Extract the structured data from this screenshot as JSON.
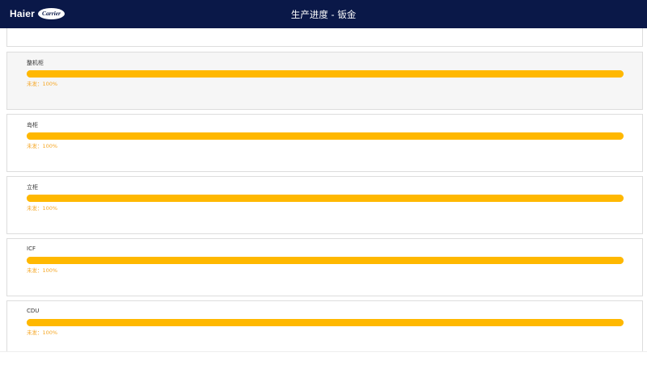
{
  "header": {
    "brand": "Haier",
    "partner_logo": "Carrier",
    "title": "生产进度 - 钣金"
  },
  "colors": {
    "header_bg": "#0a1848",
    "progress": "#ffb800",
    "status_text": "#f5a623"
  },
  "items": [
    {
      "name": "整机柜",
      "status": "未发：100%",
      "progress_percent": 100,
      "selected": true
    },
    {
      "name": "岛柜",
      "status": "未发：100%",
      "progress_percent": 100
    },
    {
      "name": "立柜",
      "status": "未发：100%",
      "progress_percent": 100
    },
    {
      "name": "ICF",
      "status": "未发：100%",
      "progress_percent": 100
    },
    {
      "name": "CDU",
      "status": "未发：100%",
      "progress_percent": 100
    }
  ]
}
